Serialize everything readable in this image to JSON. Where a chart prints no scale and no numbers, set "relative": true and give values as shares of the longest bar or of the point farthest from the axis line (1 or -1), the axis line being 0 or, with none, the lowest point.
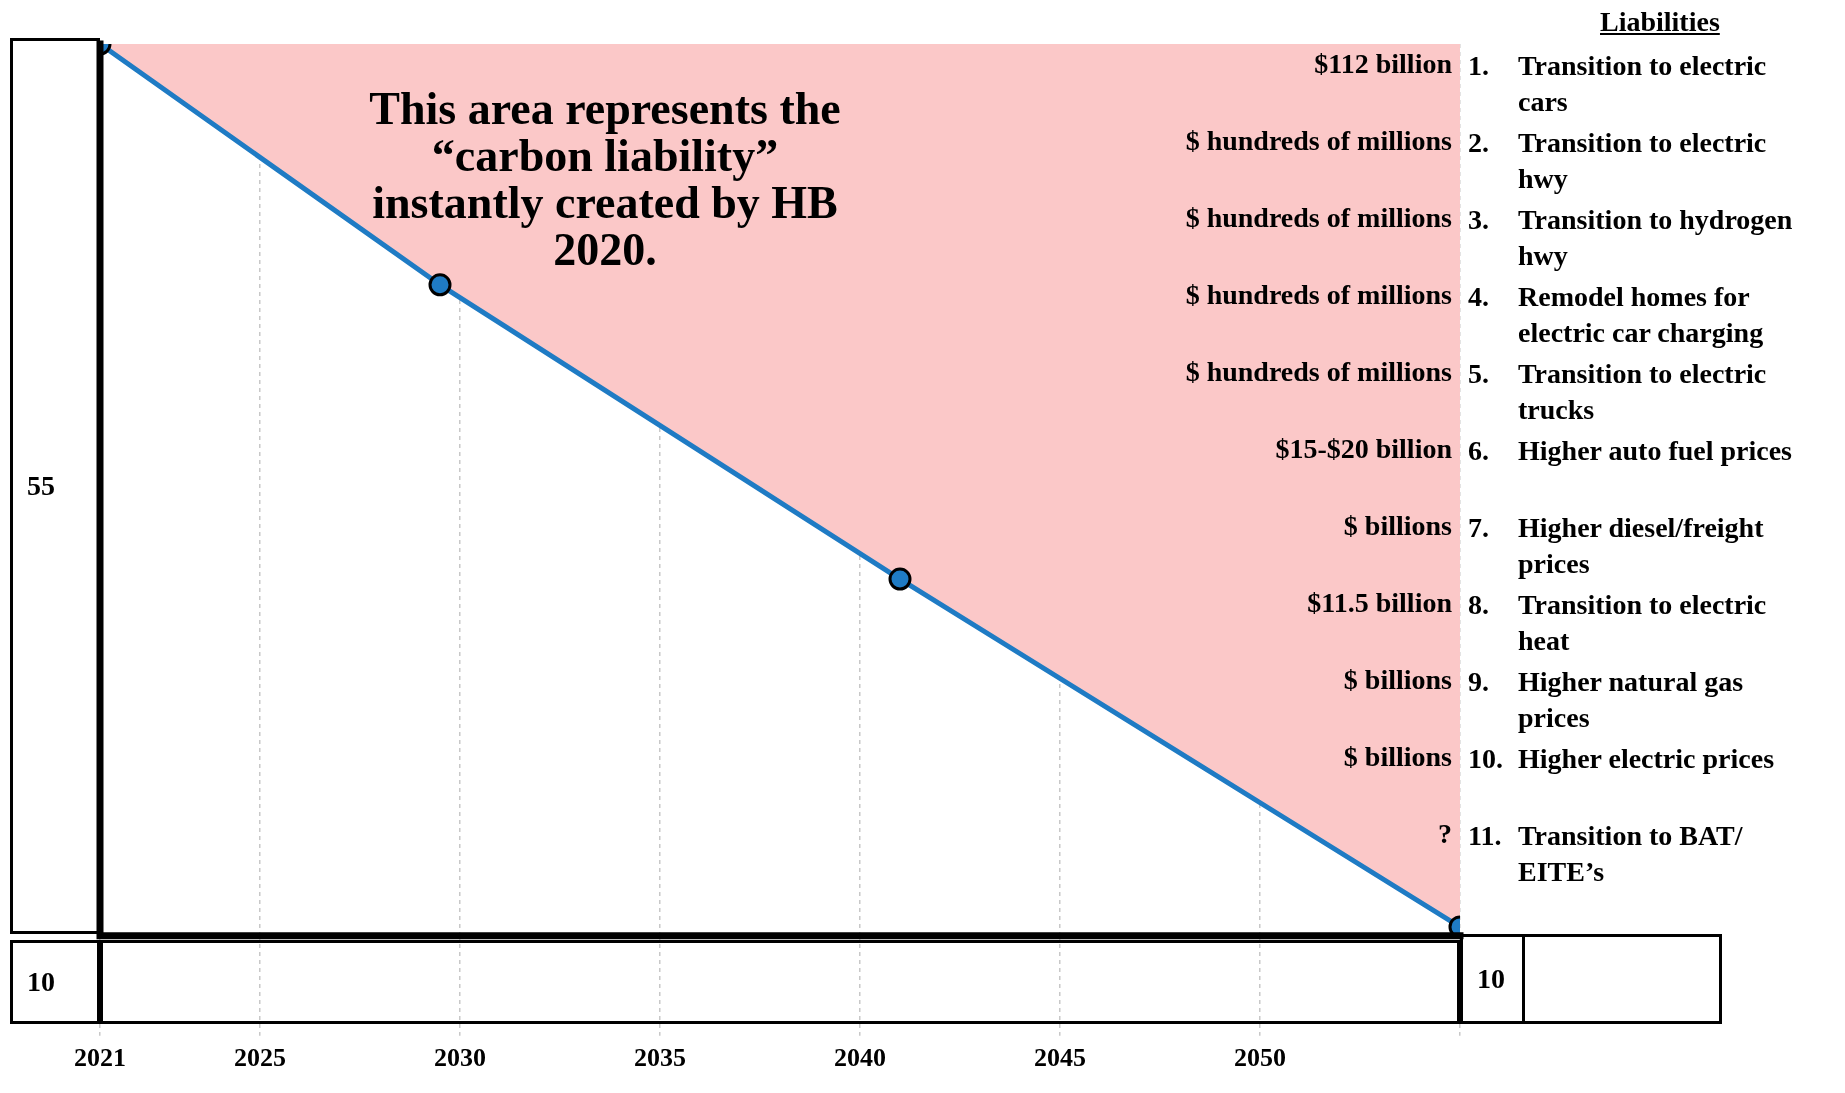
{
  "chart_data": {
    "type": "line",
    "relative": true,
    "x": [
      2021,
      2029.5,
      2041,
      2055
    ],
    "xlim": [
      2021,
      2055
    ],
    "xticks": [
      2021,
      2025,
      2030,
      2035,
      2040,
      2045,
      2050,
      {
        "value": 2055,
        "label": null
      }
    ],
    "series": [
      {
        "color": "#1f7bc4",
        "values": [
          1,
          0.73,
          0.4,
          0.01
        ]
      }
    ],
    "grid": "x",
    "marker": "circle",
    "legend": false,
    "annotations": [
      "This area represents the “carbon liability” instantly created by HB 2020.",
      "55",
      "10",
      "10",
      "Liabilities",
      "$112 billion",
      "1. Transition to electric cars",
      "$ hundreds of millions",
      "2. Transition to electric hwy",
      "$ hundreds of millions",
      "3. Transition to hydrogen hwy",
      "$ hundreds of millions",
      "4. Remodel homes for electric car charging",
      "$ hundreds of millions",
      "5. Transition to electric trucks",
      "$15-$20 billion",
      "6. Higher auto fuel prices",
      "$ billions",
      "7. Higher diesel/freight prices",
      "$11.5 billion",
      "8. Transition to electric heat",
      "$ billions",
      "9. Higher natural gas prices",
      "$ billions",
      "10. Higher electric prices",
      "?",
      "11. Transition to BAT/ EITE’s"
    ]
  }
}
